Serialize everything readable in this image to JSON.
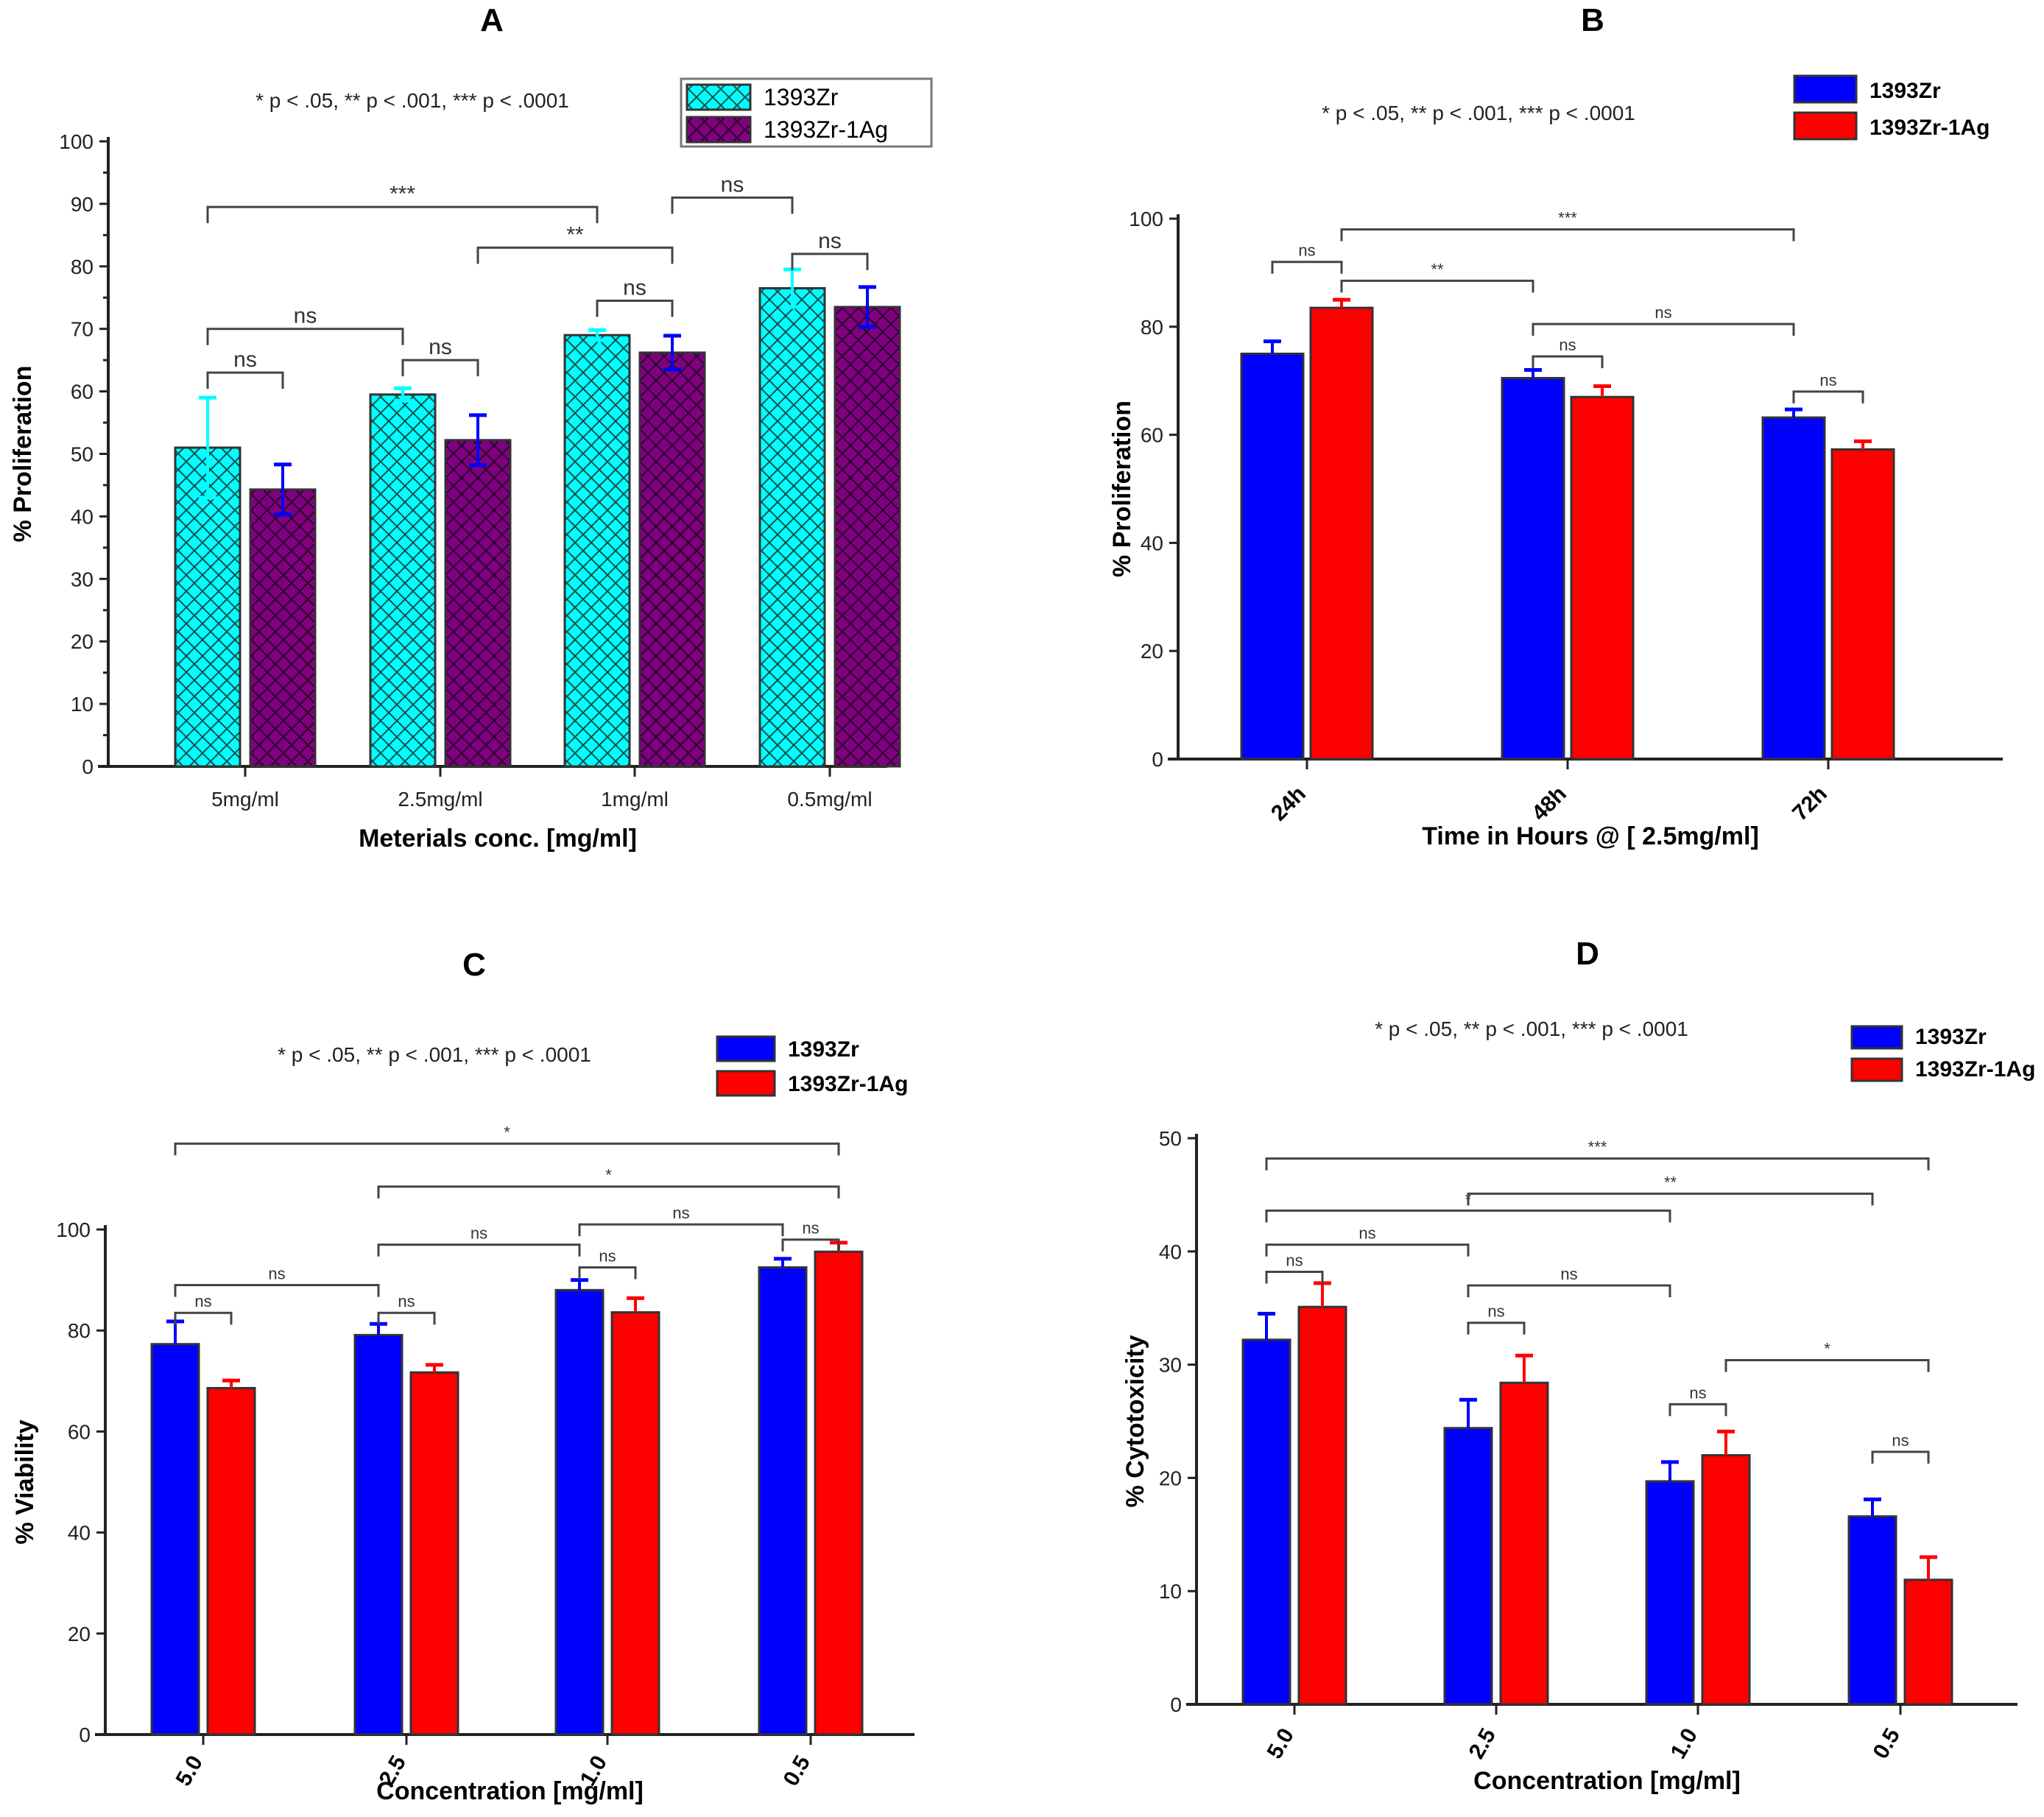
{
  "significance_note": "* p < .05,  **  p < .001,  *** p < .0001",
  "chart_data": [
    {
      "panel": "A",
      "type": "bar",
      "title": "A",
      "xlabel": "Meterials conc. [mg/ml]",
      "ylabel": "% Proliferation",
      "ylim": [
        0,
        100
      ],
      "yticks": [
        0,
        10,
        20,
        30,
        40,
        50,
        60,
        70,
        80,
        90,
        100
      ],
      "categories": [
        "5mg/ml",
        "2.5mg/ml",
        "1mg/ml",
        "0.5mg/ml"
      ],
      "legend_position": "top-right",
      "series": [
        {
          "name": "1393Zr",
          "color": "#00ffff",
          "pattern": "crosshatch",
          "error_color": "#00ffff",
          "values": [
            51.0,
            59.5,
            69.0,
            76.5
          ],
          "errors": [
            8.0,
            1.0,
            0.8,
            3.0
          ]
        },
        {
          "name": "1393Zr-1Ag",
          "color": "#800080",
          "pattern": "crosshatch",
          "error_color": "#0000ff",
          "values": [
            44.3,
            52.2,
            66.2,
            73.5
          ],
          "errors": [
            4.0,
            4.0,
            2.7,
            3.2
          ]
        }
      ],
      "brackets": [
        {
          "from": [
            0,
            0
          ],
          "to": [
            0,
            1
          ],
          "y": 63,
          "label": "ns"
        },
        {
          "from": [
            0,
            0
          ],
          "to": [
            1,
            0
          ],
          "y": 70,
          "label": "ns"
        },
        {
          "from": [
            1,
            0
          ],
          "to": [
            1,
            1
          ],
          "y": 65,
          "label": "ns"
        },
        {
          "from": [
            2,
            0
          ],
          "to": [
            2,
            1
          ],
          "y": 74.5,
          "label": "ns"
        },
        {
          "from": [
            3,
            0
          ],
          "to": [
            3,
            1
          ],
          "y": 82,
          "label": "ns"
        },
        {
          "from": [
            1,
            1
          ],
          "to": [
            2,
            1
          ],
          "y": 83,
          "label": "**"
        },
        {
          "from": [
            0,
            0
          ],
          "to": [
            2,
            0
          ],
          "y": 89.5,
          "label": "***"
        },
        {
          "from": [
            2,
            1
          ],
          "to": [
            3,
            0
          ],
          "y": 91,
          "label": "ns"
        }
      ]
    },
    {
      "panel": "B",
      "type": "bar",
      "title": "B",
      "xlabel": "Time in Hours @ [ 2.5mg/ml]",
      "ylabel": "% Proliferation",
      "ylim": [
        0,
        100
      ],
      "yticks": [
        0,
        20,
        40,
        60,
        80,
        100
      ],
      "categories": [
        "24h",
        "48h",
        "72h"
      ],
      "legend_position": "top-right",
      "series": [
        {
          "name": "1393Zr",
          "color": "#0000ff",
          "error_color": "#0000ff",
          "values": [
            75.0,
            70.5,
            63.2
          ],
          "errors": [
            2.3,
            1.5,
            1.5
          ]
        },
        {
          "name": "1393Zr-1Ag",
          "color": "#ff0000",
          "error_color": "#ff0000",
          "values": [
            83.5,
            67.0,
            57.3
          ],
          "errors": [
            1.5,
            2.0,
            1.5
          ]
        }
      ],
      "brackets": [
        {
          "from": [
            0,
            0
          ],
          "to": [
            0,
            1
          ],
          "y": 92,
          "label": "ns"
        },
        {
          "from": [
            0,
            1
          ],
          "to": [
            1,
            0
          ],
          "y": 88.5,
          "label": "**"
        },
        {
          "from": [
            0,
            1
          ],
          "to": [
            2,
            0
          ],
          "y": 98,
          "label": "***"
        },
        {
          "from": [
            1,
            0
          ],
          "to": [
            1,
            1
          ],
          "y": 74.5,
          "label": "ns"
        },
        {
          "from": [
            1,
            0
          ],
          "to": [
            2,
            0
          ],
          "y": 80.5,
          "label": "ns"
        },
        {
          "from": [
            2,
            0
          ],
          "to": [
            2,
            1
          ],
          "y": 68,
          "label": "ns"
        }
      ]
    },
    {
      "panel": "C",
      "type": "bar",
      "title": "C",
      "xlabel": "Concentration [mg/ml]",
      "ylabel": "% Viability",
      "ylim": [
        0,
        100
      ],
      "yticks": [
        0,
        20,
        40,
        60,
        80,
        100
      ],
      "categories": [
        "5.0",
        "2.5",
        "1.0",
        "0.5"
      ],
      "legend_position": "top-right",
      "series": [
        {
          "name": "1393Zr",
          "color": "#0000ff",
          "error_color": "#0000ff",
          "values": [
            77.3,
            79.1,
            88.0,
            92.5
          ],
          "errors": [
            4.5,
            2.2,
            2.0,
            1.7
          ]
        },
        {
          "name": "1393Zr-1Ag",
          "color": "#ff0000",
          "error_color": "#ff0000",
          "values": [
            68.6,
            71.7,
            83.6,
            95.6
          ],
          "errors": [
            1.5,
            1.5,
            2.8,
            1.8
          ]
        }
      ],
      "brackets": [
        {
          "from": [
            0,
            0
          ],
          "to": [
            0,
            1
          ],
          "y": 83.5,
          "label": "ns"
        },
        {
          "from": [
            0,
            0
          ],
          "to": [
            1,
            0
          ],
          "y": 89,
          "label": "ns"
        },
        {
          "from": [
            1,
            0
          ],
          "to": [
            1,
            1
          ],
          "y": 83.5,
          "label": "ns"
        },
        {
          "from": [
            1,
            0
          ],
          "to": [
            2,
            0
          ],
          "y": 97,
          "label": "ns"
        },
        {
          "from": [
            2,
            0
          ],
          "to": [
            2,
            1
          ],
          "y": 92.5,
          "label": "ns"
        },
        {
          "from": [
            2,
            0
          ],
          "to": [
            3,
            0
          ],
          "y": 101,
          "label": "ns"
        },
        {
          "from": [
            3,
            0
          ],
          "to": [
            3,
            1
          ],
          "y": 98,
          "label": "ns"
        },
        {
          "from": [
            1,
            0
          ],
          "to": [
            3,
            1
          ],
          "y": 108.5,
          "label": "*"
        },
        {
          "from": [
            0,
            0
          ],
          "to": [
            3,
            1
          ],
          "y": 117,
          "label": "*"
        }
      ]
    },
    {
      "panel": "D",
      "type": "bar",
      "title": "D",
      "xlabel": "Concentration [mg/ml]",
      "ylabel": "% Cytotoxicity",
      "ylim": [
        0,
        50
      ],
      "yticks": [
        0,
        10,
        20,
        30,
        40,
        50
      ],
      "categories": [
        "5.0",
        "2.5",
        "1.0",
        "0.5"
      ],
      "legend_position": "top-right",
      "series": [
        {
          "name": "1393Zr",
          "color": "#0000ff",
          "error_color": "#0000ff",
          "values": [
            32.2,
            24.4,
            19.7,
            16.6
          ],
          "errors": [
            2.3,
            2.5,
            1.7,
            1.5
          ]
        },
        {
          "name": "1393Zr-1Ag",
          "color": "#ff0000",
          "error_color": "#ff0000",
          "values": [
            35.1,
            28.4,
            22.0,
            11.0
          ],
          "errors": [
            2.1,
            2.4,
            2.1,
            2.0
          ]
        }
      ],
      "brackets": [
        {
          "from": [
            0,
            0
          ],
          "to": [
            0,
            1
          ],
          "y": 38.2,
          "label": "ns"
        },
        {
          "from": [
            0,
            0
          ],
          "to": [
            1,
            0
          ],
          "y": 40.6,
          "label": "ns"
        },
        {
          "from": [
            0,
            0
          ],
          "to": [
            2,
            0
          ],
          "y": 43.6,
          "label": "*"
        },
        {
          "from": [
            1,
            0
          ],
          "to": [
            3,
            0
          ],
          "y": 45.1,
          "label": "**"
        },
        {
          "from": [
            0,
            0
          ],
          "to": [
            3,
            1
          ],
          "y": 48.2,
          "label": "***"
        },
        {
          "from": [
            1,
            0
          ],
          "to": [
            1,
            1
          ],
          "y": 33.7,
          "label": "ns"
        },
        {
          "from": [
            1,
            0
          ],
          "to": [
            2,
            0
          ],
          "y": 37.0,
          "label": "ns"
        },
        {
          "from": [
            2,
            0
          ],
          "to": [
            2,
            1
          ],
          "y": 26.5,
          "label": "ns"
        },
        {
          "from": [
            2,
            1
          ],
          "to": [
            3,
            1
          ],
          "y": 30.4,
          "label": "*"
        },
        {
          "from": [
            3,
            0
          ],
          "to": [
            3,
            1
          ],
          "y": 22.3,
          "label": "ns"
        }
      ]
    }
  ]
}
